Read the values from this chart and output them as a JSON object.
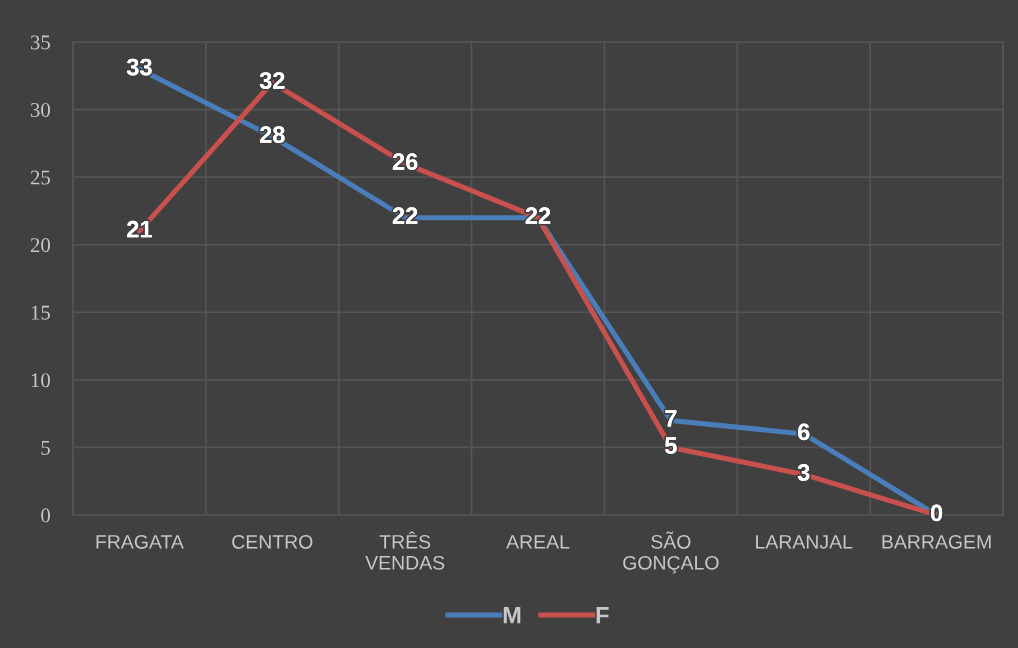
{
  "chart_data": {
    "type": "line",
    "categories": [
      "FRAGATA",
      "CENTRO",
      "TRÊS VENDAS",
      "AREAL",
      "SÃO GONÇALO",
      "LARANJAL",
      "BARRAGEM"
    ],
    "series": [
      {
        "name": "M",
        "color": "#4a7ebb",
        "values": [
          33,
          28,
          22,
          22,
          7,
          6,
          0
        ],
        "value_labels": [
          "33",
          "28",
          "22",
          "22",
          "7",
          "6",
          "0"
        ]
      },
      {
        "name": "F",
        "color": "#c8504d",
        "values": [
          21,
          32,
          26,
          22,
          5,
          3,
          0
        ],
        "value_labels": [
          "21",
          "32",
          "26",
          null,
          "5",
          "3",
          null
        ]
      }
    ],
    "ylim": [
      0,
      35
    ],
    "yticks": [
      0,
      5,
      10,
      15,
      20,
      25,
      30,
      35
    ],
    "grid": true,
    "legend": "bottom",
    "line_style": "solid"
  }
}
